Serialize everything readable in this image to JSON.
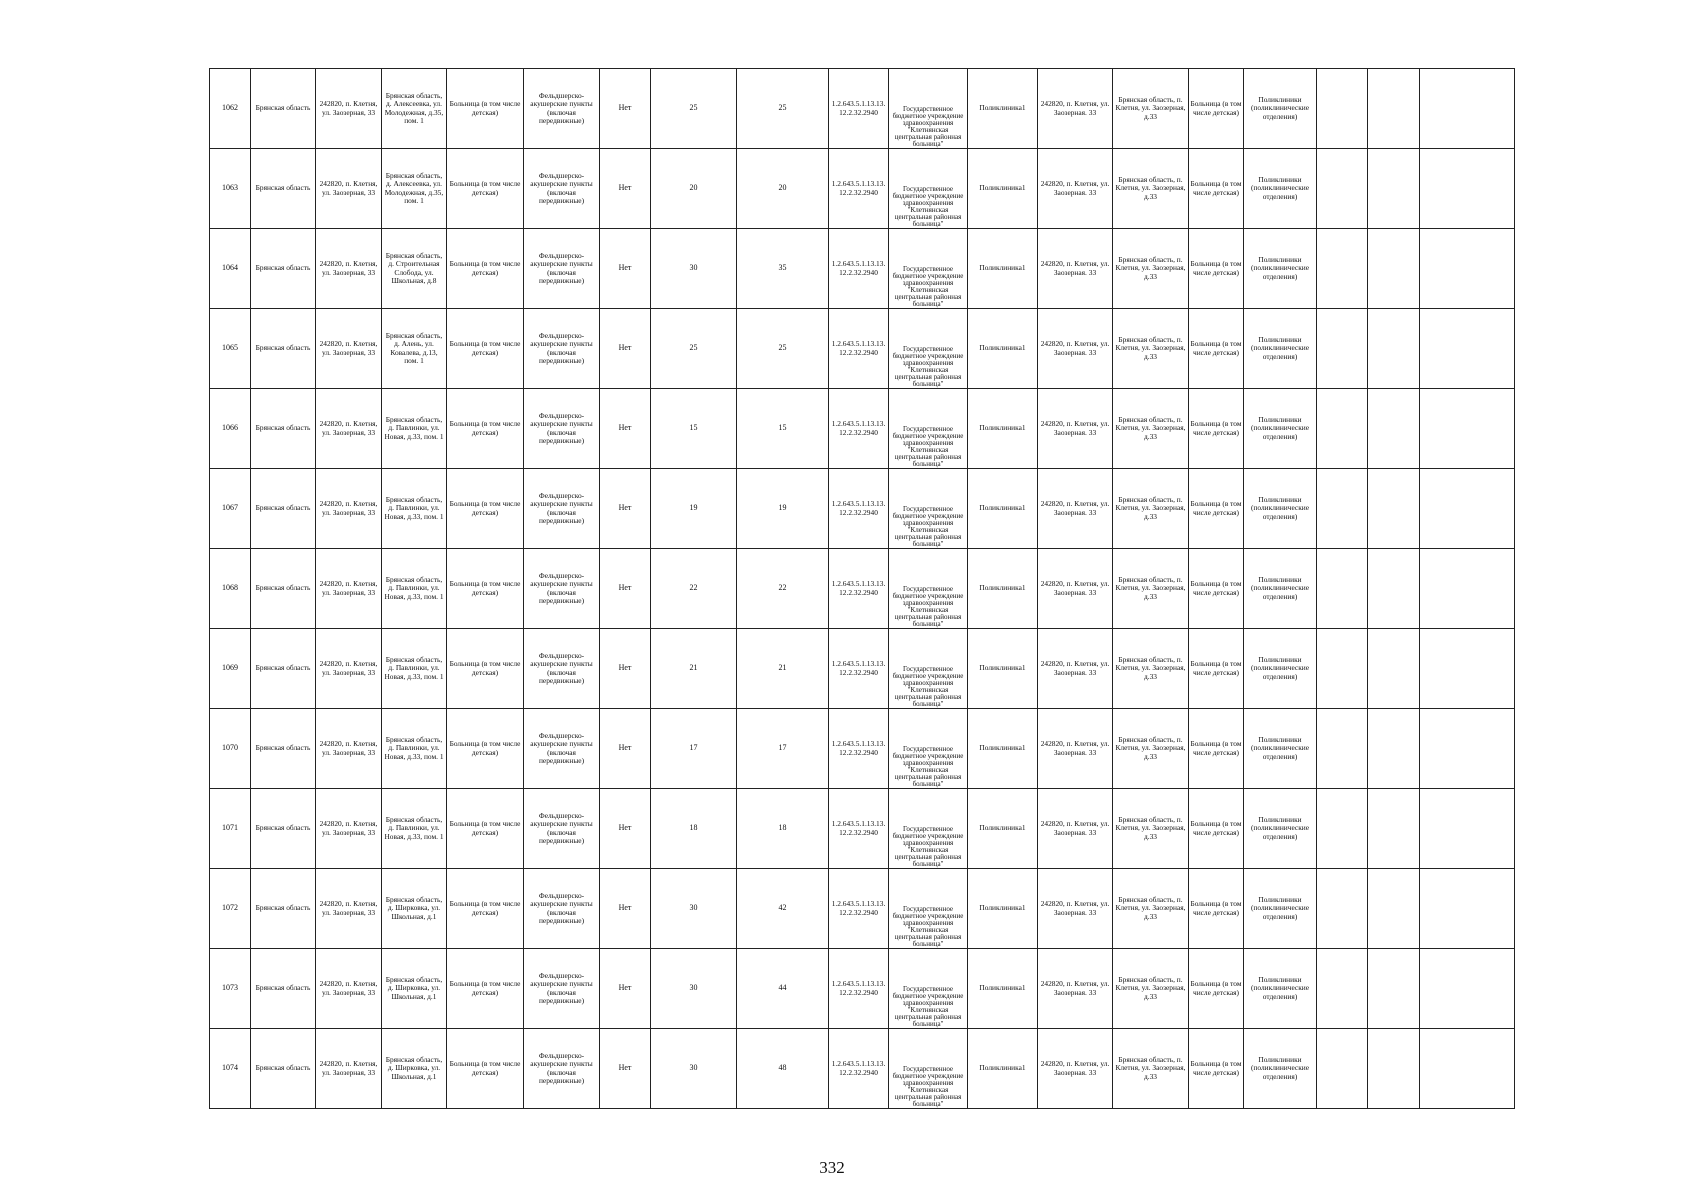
{
  "page_number": "332",
  "common": {
    "region": "Брянская область",
    "org_address": "242820, п. Клетня, ул. Заозерная, 33",
    "facility_type": "Больница (в том числе детская)",
    "unit_type": "Фельдшерско-акушерские пункты (включая передвижные)",
    "flag": "Нет",
    "oid": "1.2.643.5.1.13.13.12.2.32.2940",
    "org_name": "Государственное бюджетное учреждение здравоохранения \"Клетнянская центральная районная больница\"",
    "parent_unit": "Поликлиника1",
    "parent_org_address": "242820, п. Клетня, ул. Заозерная. 33",
    "parent_address": "Брянская область, п. Клетня, ул. Заозерная, д.33",
    "parent_facility_type": "Больница (в том числе детская)",
    "parent_unit_type": "Поликлиники (поликлинические отделения)"
  },
  "rows": [
    {
      "id": "1062",
      "address": "Брянская область, д. Алексеевка, ул. Молодежная, д.35, пом. 1",
      "a": "25",
      "b": "25"
    },
    {
      "id": "1063",
      "address": "Брянская область, д. Алексеевка, ул. Молодежная, д.35, пом. 1",
      "a": "20",
      "b": "20"
    },
    {
      "id": "1064",
      "address": "Брянская область, д. Строительная Слобода, ул. Школьная, д.8",
      "a": "30",
      "b": "35"
    },
    {
      "id": "1065",
      "address": "Брянская область, д. Алень, ул. Ковалева, д.13, пом. 1",
      "a": "25",
      "b": "25"
    },
    {
      "id": "1066",
      "address": "Брянская область, д. Павлинки, ул. Новая, д.33, пом. 1",
      "a": "15",
      "b": "15"
    },
    {
      "id": "1067",
      "address": "Брянская область, д. Павлинки, ул. Новая, д.33, пом. 1",
      "a": "19",
      "b": "19"
    },
    {
      "id": "1068",
      "address": "Брянская область, д. Павлинки, ул. Новая, д.33, пом. 1",
      "a": "22",
      "b": "22"
    },
    {
      "id": "1069",
      "address": "Брянская область, д. Павлинки, ул. Новая, д.33, пом. 1",
      "a": "21",
      "b": "21"
    },
    {
      "id": "1070",
      "address": "Брянская область, д. Павлинки, ул. Новая, д.33, пом. 1",
      "a": "17",
      "b": "17"
    },
    {
      "id": "1071",
      "address": "Брянская область, д. Павлинки, ул. Новая, д.33, пом. 1",
      "a": "18",
      "b": "18"
    },
    {
      "id": "1072",
      "address": "Брянская область, д. Ширковка, ул. Школьная, д.1",
      "a": "30",
      "b": "42"
    },
    {
      "id": "1073",
      "address": "Брянская область, д. Ширковка, ул. Школьная, д.1",
      "a": "30",
      "b": "44"
    },
    {
      "id": "1074",
      "address": "Брянская область, д. Ширковка, ул. Школьная, д.1",
      "a": "30",
      "b": "48"
    }
  ]
}
